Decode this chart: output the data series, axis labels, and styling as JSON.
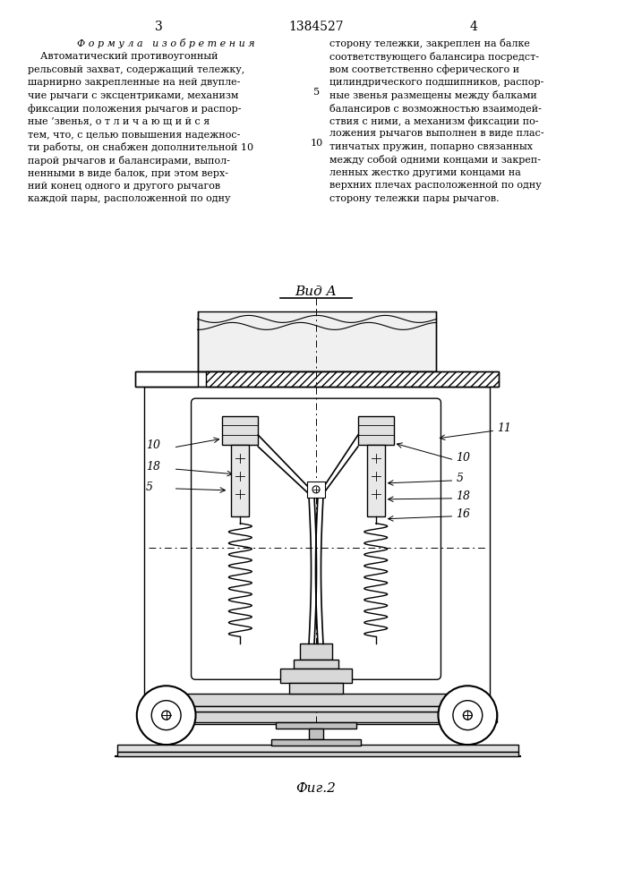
{
  "page_width": 7.07,
  "page_height": 10.0,
  "bg_color": "#ffffff",
  "header_page_left": "3",
  "header_patent": "1384527",
  "header_page_right": "4",
  "col1_title": "Ф о р м у л а   и з о б р е т е н и я",
  "col1_lines": [
    "    Автоматический противоугонный",
    "рельсовый захват, содержащий тележку,",
    "шарнирно закрепленные на ней двупле-",
    "чие рычаги с эксцентриками, механизм",
    "фиксации положения рычагов и распор-",
    "ные ’звенья, о т л и ч а ю щ и й с я",
    "тем, что, с целью повышения надежнос-",
    "ти работы, он снабжен дополнительной 10",
    "парой рычагов и балансирами, выпол-",
    "ненными в виде балок, при этом верх-",
    "ний конец одного и другого рычагов",
    "каждой пары, расположенной по одну"
  ],
  "col2_lines": [
    "сторону тележки, закреплен на балке",
    "соответствующего балансира посредст-",
    "вом соответственно сферического и",
    "цилиндрического подшипников, распор-",
    "ные звенья размещены между балками",
    "балансиров с возможностью взаимодей-",
    "ствия с ними, а механизм фиксации по-",
    "ложения рычагов выполнен в виде плас-",
    "тинчатых пружин, попарно связанных",
    "между собой одними концами и закреп-",
    "ленных жестко другими концами на",
    "верхних плечах расположенной по одну",
    "сторону тележки пары рычагов."
  ],
  "view_label": "Вид A",
  "fig_label": "Фиг.2"
}
